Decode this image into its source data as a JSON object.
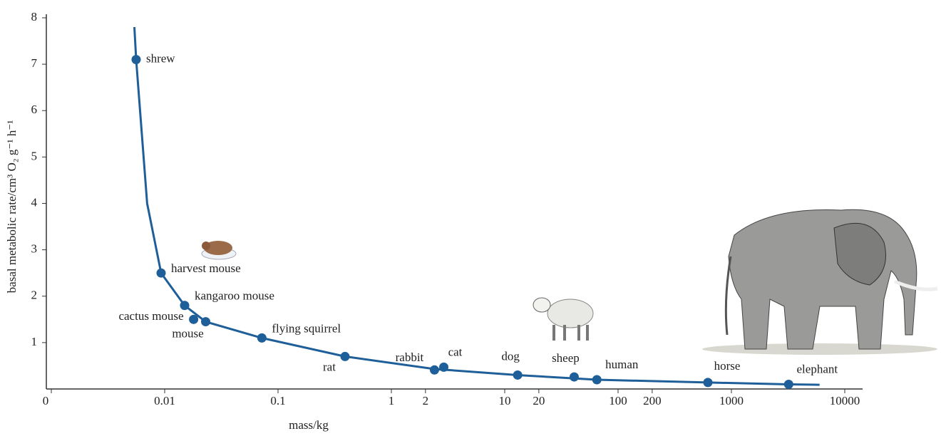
{
  "chart_data": {
    "type": "scatter",
    "y_label": "basal metabolic rate/cm³ O₂ g⁻¹ h⁻¹",
    "x_label": "mass/kg",
    "categories": [
      "shrew",
      "harvest mouse",
      "kangaroo mouse",
      "cactus mouse",
      "mouse",
      "flying squirrel",
      "rat",
      "rabbit",
      "cat",
      "dog",
      "sheep",
      "human",
      "horse",
      "elephant"
    ],
    "x": [
      0.0056,
      0.0093,
      0.015,
      0.018,
      0.023,
      0.072,
      0.39,
      2.4,
      2.9,
      13,
      41,
      65,
      620,
      3200
    ],
    "values": [
      7.1,
      2.5,
      1.8,
      1.5,
      1.45,
      1.1,
      0.7,
      0.41,
      0.47,
      0.3,
      0.26,
      0.2,
      0.14,
      0.1
    ],
    "curve_x": [
      0.0054,
      0.0056,
      0.007,
      0.0093,
      0.015,
      0.023,
      0.072,
      0.39,
      2.4,
      13,
      65,
      620,
      3200,
      6000
    ],
    "curve_y": [
      7.8,
      7.1,
      4.0,
      2.5,
      1.8,
      1.45,
      1.1,
      0.7,
      0.43,
      0.3,
      0.2,
      0.14,
      0.1,
      0.09
    ],
    "color": "#1f5f99",
    "x_log": true,
    "xlim": [
      0.001,
      15000
    ],
    "xticks": [
      {
        "value": 0.001,
        "label": "0"
      },
      0.01,
      0.1,
      1,
      2,
      10,
      20,
      100,
      200,
      1000,
      10000
    ],
    "ylim": [
      0,
      8
    ],
    "yticks": [
      1,
      2,
      3,
      4,
      5,
      6,
      7,
      8
    ]
  }
}
